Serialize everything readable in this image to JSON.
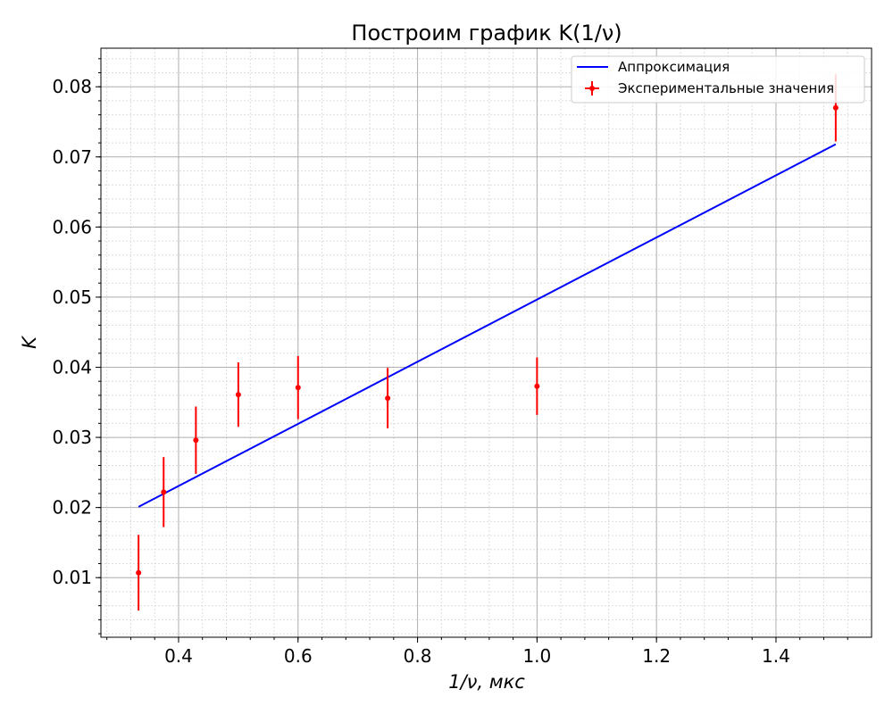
{
  "chart_data": {
    "type": "scatter",
    "title": "Построим график K(1/ν)",
    "xlabel": "1/ν, мкс",
    "ylabel": "K",
    "xlim": [
      0.27,
      1.56
    ],
    "ylim": [
      0.0015,
      0.0855
    ],
    "x_ticks": [
      0.4,
      0.6,
      0.8,
      1.0,
      1.2,
      1.4
    ],
    "x_tick_labels": [
      "0.4",
      "0.6",
      "0.8",
      "1.0",
      "1.2",
      "1.4"
    ],
    "y_ticks": [
      0.01,
      0.02,
      0.03,
      0.04,
      0.05,
      0.06,
      0.07,
      0.08
    ],
    "y_tick_labels": [
      "0.01",
      "0.02",
      "0.03",
      "0.04",
      "0.05",
      "0.06",
      "0.07",
      "0.08"
    ],
    "grid": true,
    "minor_grid": true,
    "legend_position": "top-right",
    "series": [
      {
        "name": "Аппроксимация",
        "kind": "line",
        "color": "#0000ff",
        "x": [
          0.333,
          1.5
        ],
        "y": [
          0.0201,
          0.0718
        ]
      },
      {
        "name": "Экспериментальные значения",
        "kind": "errorbar",
        "color": "#ff0000",
        "x": [
          0.333,
          0.375,
          0.429,
          0.5,
          0.6,
          0.75,
          1.0,
          1.5
        ],
        "y": [
          0.0107,
          0.0222,
          0.0296,
          0.0361,
          0.0371,
          0.0356,
          0.0373,
          0.077
        ],
        "yerr": [
          0.0054,
          0.005,
          0.0048,
          0.0046,
          0.0045,
          0.0043,
          0.0041,
          0.0048
        ]
      }
    ]
  }
}
